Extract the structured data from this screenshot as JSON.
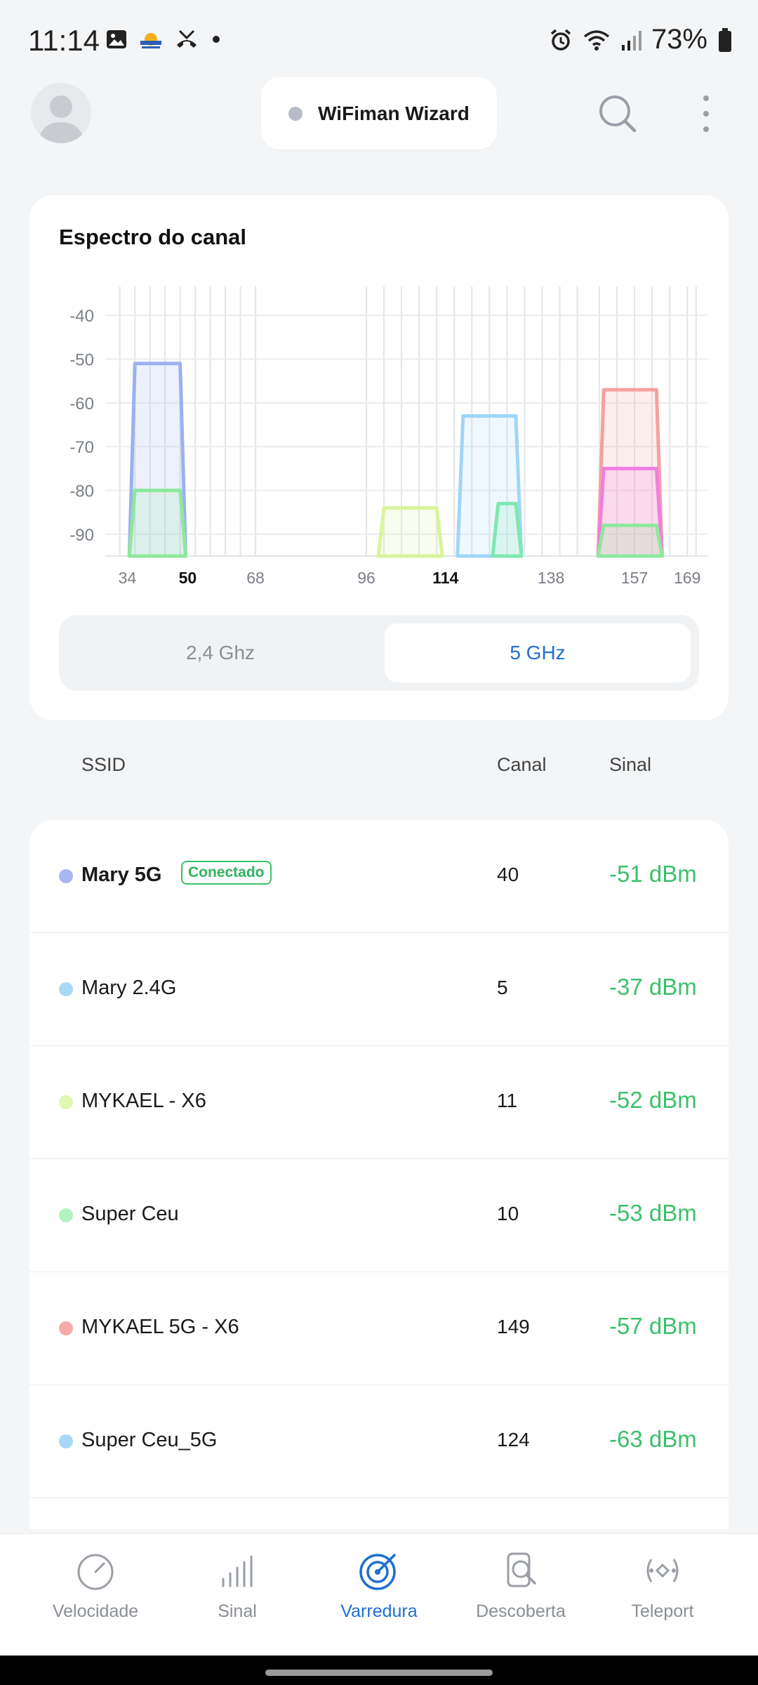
{
  "status": {
    "time": "11:14",
    "battery": "73%",
    "icons": [
      "image-icon",
      "weather-icon",
      "missed-call-icon",
      "dot-icon",
      "alarm-icon",
      "wifi-icon",
      "cell-signal-icon",
      "battery-icon"
    ]
  },
  "header": {
    "wizard_label": "WiFiman Wizard"
  },
  "spectrum": {
    "title": "Espectro do canal",
    "bands": {
      "ghz24": "2,4 Ghz",
      "ghz5": "5 GHz",
      "selected": "5 GHz"
    }
  },
  "chart_data": {
    "type": "area",
    "title": "Espectro do canal",
    "yticks": [
      "-40",
      "-50",
      "-60",
      "-70",
      "-80",
      "-90"
    ],
    "ylim": [
      -95,
      -35
    ],
    "xticks": [
      {
        "label": "34",
        "bold": false
      },
      {
        "label": "50",
        "bold": true
      },
      {
        "label": "68",
        "bold": false
      },
      {
        "label": "96",
        "bold": false
      },
      {
        "label": "114",
        "bold": true
      },
      {
        "label": "138",
        "bold": false
      },
      {
        "label": "157",
        "bold": false
      },
      {
        "label": "169",
        "bold": false
      }
    ],
    "grid": true,
    "series": [
      {
        "color": "#9bb1f0",
        "x_start": 36,
        "x_end": 48,
        "peak": -51
      },
      {
        "color": "#8ee89c",
        "x_start": 36,
        "x_end": 48,
        "peak": -80
      },
      {
        "color": "#d8f59a",
        "x_start": 100,
        "x_end": 112,
        "peak": -84
      },
      {
        "color": "#9fd6f7",
        "x_start": 118,
        "x_end": 130,
        "peak": -63
      },
      {
        "color": "#7ee8b0",
        "x_start": 126,
        "x_end": 130,
        "peak": -83
      },
      {
        "color": "#f5a0a0",
        "x_start": 150,
        "x_end": 162,
        "peak": -57
      },
      {
        "color": "#f07fe0",
        "x_start": 150,
        "x_end": 162,
        "peak": -75
      },
      {
        "color": "#8ee89c",
        "x_start": 150,
        "x_end": 162,
        "peak": -88
      }
    ]
  },
  "list": {
    "headers": {
      "ssid": "SSID",
      "canal": "Canal",
      "sinal": "Sinal"
    },
    "networks": [
      {
        "ssid": "Mary 5G",
        "badge": "Conectado",
        "channel": "40",
        "signal": "-51 dBm",
        "color": "#aab6f2",
        "connected": true
      },
      {
        "ssid": "Mary 2.4G",
        "channel": "5",
        "signal": "-37 dBm",
        "color": "#a9d8f7"
      },
      {
        "ssid": "MYKAEL - X6",
        "channel": "11",
        "signal": "-52 dBm",
        "color": "#dff7b0"
      },
      {
        "ssid": "Super Ceu",
        "channel": "10",
        "signal": "-53 dBm",
        "color": "#b3f2c0"
      },
      {
        "ssid": "MYKAEL 5G - X6",
        "channel": "149",
        "signal": "-57 dBm",
        "color": "#f7a9a9"
      },
      {
        "ssid": "Super Ceu_5G",
        "channel": "124",
        "signal": "-63 dBm",
        "color": "#a9d8f7"
      }
    ]
  },
  "nav": {
    "items": [
      {
        "label": "Velocidade",
        "icon": "speedometer-icon"
      },
      {
        "label": "Sinal",
        "icon": "signal-bars-icon"
      },
      {
        "label": "Varredura",
        "icon": "radar-icon",
        "active": true
      },
      {
        "label": "Descoberta",
        "icon": "discovery-icon"
      },
      {
        "label": "Teleport",
        "icon": "teleport-icon"
      }
    ]
  }
}
